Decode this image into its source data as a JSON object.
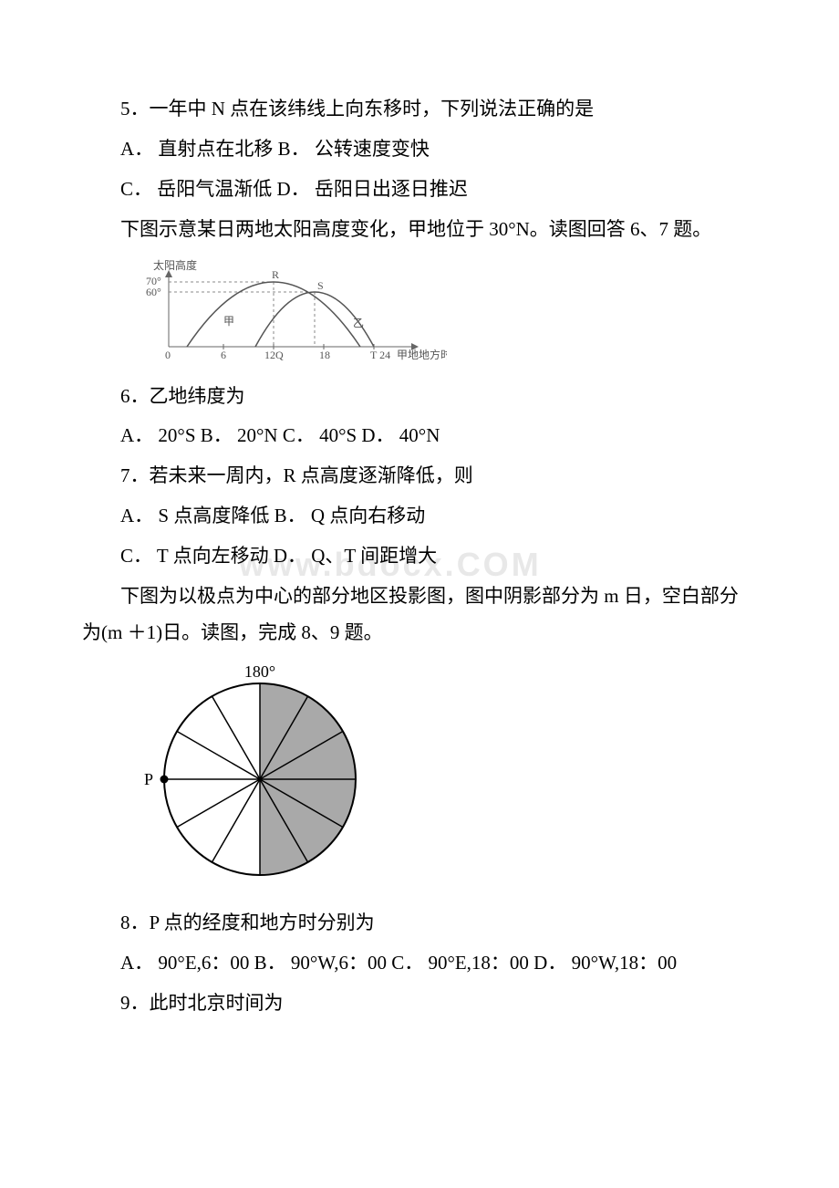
{
  "q5": {
    "stem": "5．一年中 N 点在该纬线上向东移时，下列说法正确的是",
    "optA": "A． 直射点在北移 B． 公转速度变快",
    "optC": "C． 岳阳气温渐低 D． 岳阳日出逐日推迟"
  },
  "intro67": "下图示意某日两地太阳高度变化，甲地位于 30°N。读图回答 6、7 题。",
  "fig1": {
    "ylabel": "太阳高度",
    "xlabel": "甲地地方时(时)",
    "yticks": [
      "70°",
      "60°"
    ],
    "xticks": [
      "0",
      "6",
      "12",
      "18",
      "24"
    ],
    "labels": {
      "R": "R",
      "S": "S",
      "Q": "Q",
      "T": "T",
      "jia": "甲",
      "yi": "乙"
    },
    "colors": {
      "axis": "#666",
      "curve": "#555",
      "dash": "#888",
      "text": "#555"
    }
  },
  "q6": {
    "stem": "6．乙地纬度为",
    "opts": "A． 20°S B． 20°N C． 40°S D． 40°N"
  },
  "q7": {
    "stem": "7．若未来一周内，R 点高度逐渐降低，则",
    "optA": "A． S 点高度降低 B． Q 点向右移动",
    "optC": "C． T 点向左移动 D． Q、T 间距增大"
  },
  "intro89": "下图为以极点为中心的部分地区投影图，图中阴影部分为 m 日，空白部分为(m ＋1)日。读图，完成 8、9 题。",
  "fig2": {
    "top_label": "180°",
    "left_label": "P",
    "colors": {
      "fill": "#a9a9a9",
      "stroke": "#000",
      "bg": "#fff"
    },
    "radius": 105,
    "sectors": 12
  },
  "q8": {
    "stem": "8．P 点的经度和地方时分别为",
    "opts": "A． 90°E,6：00 B． 90°W,6：00 C． 90°E,18：00 D． 90°W,18：00"
  },
  "q9": {
    "stem": "9．此时北京时间为"
  },
  "watermark": "www.bdocx.COM"
}
